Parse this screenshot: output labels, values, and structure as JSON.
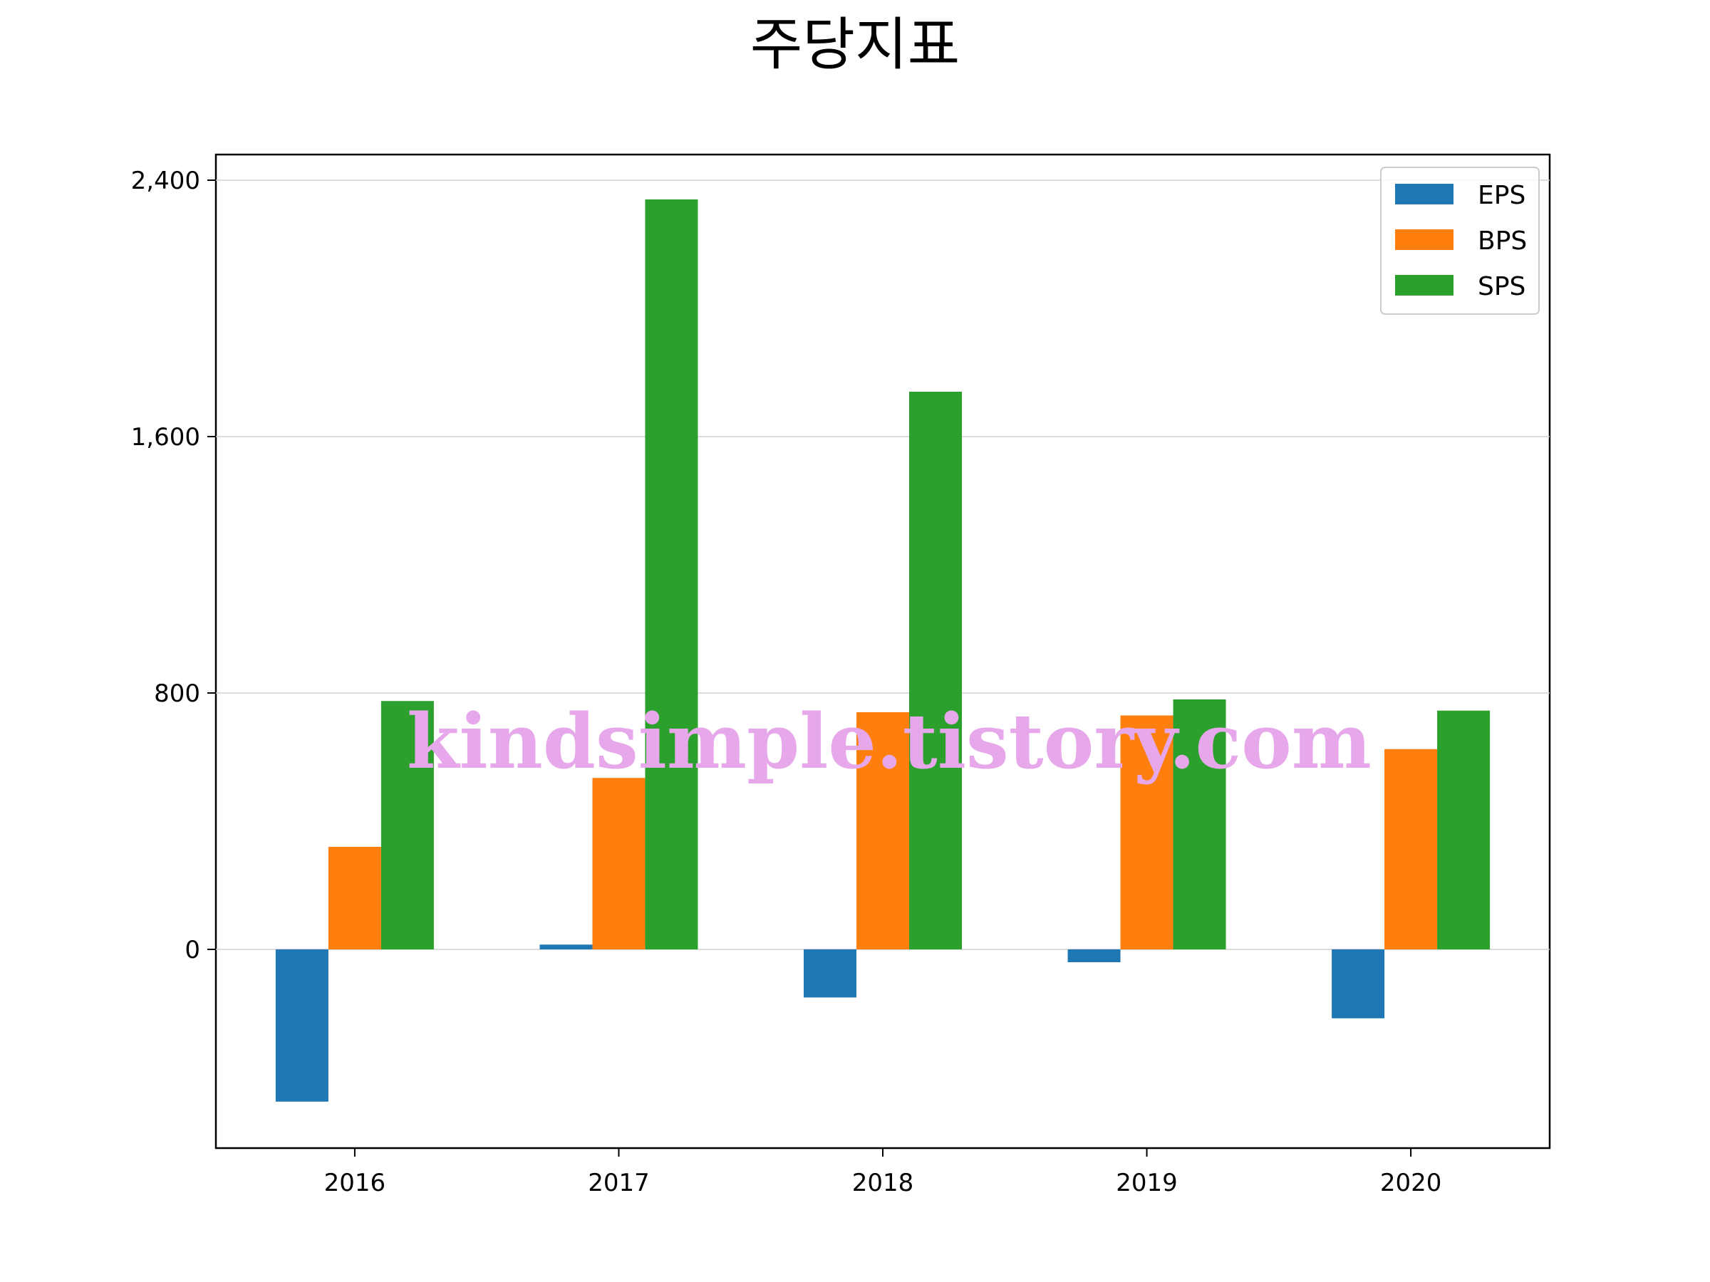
{
  "chart_data": {
    "type": "bar",
    "title": "주당지표",
    "xlabel": "",
    "ylabel": "",
    "categories": [
      "2016",
      "2017",
      "2018",
      "2019",
      "2020"
    ],
    "series": [
      {
        "name": "EPS",
        "color": "#1f77b4",
        "values": [
          -475,
          15,
          -150,
          -40,
          -215
        ]
      },
      {
        "name": "BPS",
        "color": "#ff7f0e",
        "values": [
          320,
          535,
          740,
          730,
          625
        ]
      },
      {
        "name": "SPS",
        "color": "#2ca02c",
        "values": [
          775,
          2340,
          1740,
          780,
          745
        ]
      }
    ],
    "ylim": [
      -620,
      2480
    ],
    "yticks": [
      0,
      800,
      1600,
      2400
    ],
    "ytick_labels": [
      "0",
      "800",
      "1,600",
      "2,400"
    ],
    "grid": "y",
    "legend": "top-right"
  },
  "watermark": "kindsimple.tistory.com"
}
